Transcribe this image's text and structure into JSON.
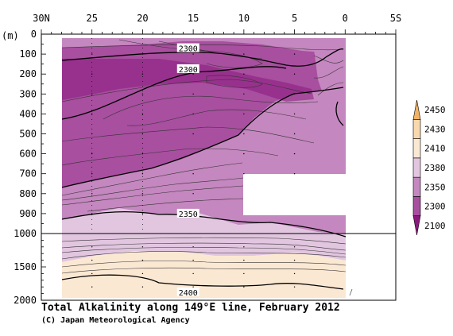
{
  "chart_data": {
    "type": "contour-section",
    "title": "Total Alkalinity along 149°E line, February 2012",
    "credit": "(C) Japan Meteorological Agency",
    "x_axis": {
      "range": [
        30,
        -5
      ],
      "tick_values": [
        30,
        25,
        20,
        15,
        10,
        5,
        0,
        -5
      ],
      "tick_labels": [
        "30N",
        "25",
        "20",
        "15",
        "10",
        "5",
        "0",
        "5S"
      ]
    },
    "y_axis": {
      "unit_label": "(m)",
      "upper_range": [
        0,
        1000
      ],
      "lower_range": [
        1000,
        2000
      ],
      "tick_values": [
        0,
        100,
        200,
        300,
        400,
        500,
        600,
        700,
        800,
        900,
        1000,
        1500,
        2000
      ],
      "tick_labels": [
        "0",
        "100",
        "200",
        "300",
        "400",
        "500",
        "600",
        "700",
        "800",
        "900",
        "1000",
        "1500",
        "2000"
      ]
    },
    "legend": {
      "levels": [
        2100,
        2300,
        2350,
        2380,
        2410,
        2430,
        2450
      ],
      "labels": [
        "2100",
        "2300",
        "2350",
        "2380",
        "2410",
        "2430",
        "2450"
      ],
      "colors": [
        "#8b1a7e",
        "#a84f9f",
        "#c487bf",
        "#e2c6e0",
        "#fbe8d3",
        "#f9d8ad",
        "#f0b266"
      ],
      "placement": "right"
    },
    "contour_labels": [
      {
        "text": "2300",
        "lat": 15.5,
        "depth": 70
      },
      {
        "text": "2300",
        "lat": 15.5,
        "depth": 175
      },
      {
        "text": "2350",
        "lat": 15.5,
        "depth": 900
      },
      {
        "text": "2400",
        "lat": 15.5,
        "depth": 1880
      }
    ]
  }
}
